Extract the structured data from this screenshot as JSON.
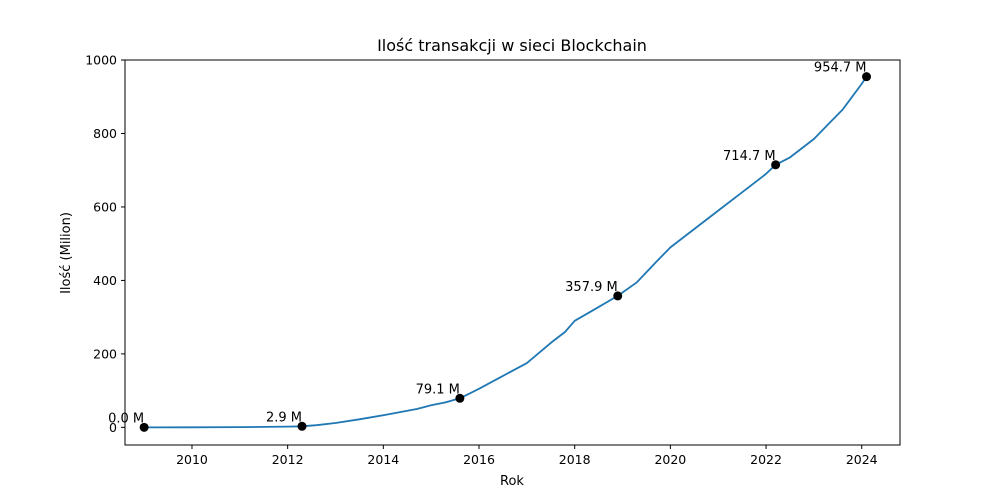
{
  "chart_data": {
    "type": "line",
    "title": "Ilość transakcji w sieci Blockchain",
    "xlabel": "Rok",
    "ylabel": "Ilość (Milion)",
    "xlim": [
      2008.6,
      2024.8
    ],
    "ylim": [
      -48,
      1000
    ],
    "xticks": [
      2010,
      2012,
      2014,
      2016,
      2018,
      2020,
      2022,
      2024
    ],
    "yticks": [
      0,
      200,
      400,
      600,
      800,
      1000
    ],
    "grid": false,
    "colors": {
      "line": "#1f77b4",
      "marker": "#000000"
    },
    "series": [
      {
        "x": [
          2009.0,
          2010.0,
          2011.0,
          2011.5,
          2012.0,
          2012.3,
          2012.6,
          2013.0,
          2013.5,
          2014.0,
          2014.7,
          2015.0,
          2015.3,
          2015.6,
          2016.0,
          2016.5,
          2017.0,
          2017.5,
          2017.8,
          2018.0,
          2018.4,
          2018.9,
          2019.3,
          2019.7,
          2020.0,
          2020.5,
          2021.0,
          2021.5,
          2022.0,
          2022.2,
          2022.5,
          2023.0,
          2023.3,
          2023.6,
          2023.8,
          2024.0,
          2024.1
        ],
        "y": [
          0,
          0.2,
          0.6,
          1.2,
          2.0,
          2.9,
          6,
          12,
          22,
          33,
          50,
          60,
          68,
          79.1,
          105,
          140,
          175,
          230,
          260,
          290,
          320,
          357.9,
          395,
          450,
          490,
          540,
          590,
          640,
          690,
          714.7,
          735,
          785,
          825,
          865,
          900,
          935,
          954.7
        ]
      }
    ],
    "annotations": [
      {
        "x": 2009.0,
        "y": 0,
        "label": "0.0 M"
      },
      {
        "x": 2012.3,
        "y": 2.9,
        "label": "2.9 M"
      },
      {
        "x": 2015.6,
        "y": 79.1,
        "label": "79.1 M"
      },
      {
        "x": 2018.9,
        "y": 357.9,
        "label": "357.9 M"
      },
      {
        "x": 2022.2,
        "y": 714.7,
        "label": "714.7 M"
      },
      {
        "x": 2024.1,
        "y": 954.7,
        "label": "954.7 M"
      }
    ]
  }
}
